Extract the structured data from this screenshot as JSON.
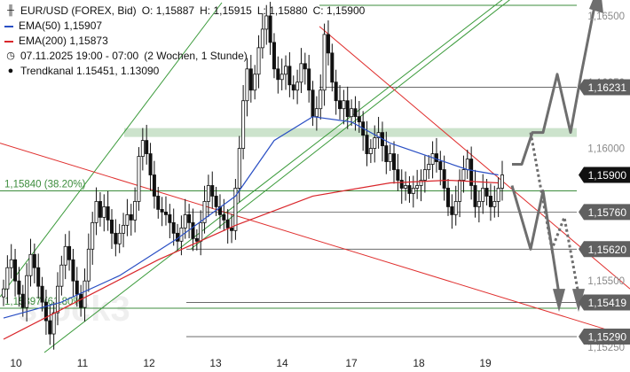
{
  "legend": {
    "symbol": "EUR/USD (FOREX, Bid)",
    "open_label": "O:",
    "open": "1,15887",
    "high_label": "H:",
    "high": "1,15915",
    "low_label": "L:",
    "low": "1,15880",
    "close_label": "C:",
    "close": "1,15900",
    "ema50_label": "EMA(50)",
    "ema50_value": "1,15907",
    "ema200_label": "EMA(200)",
    "ema200_value": "1,15873",
    "range": "07.11.2025 19:00 - 07:00",
    "range_note": "(2 Wochen, 1 Stunde)",
    "channel_label": "Trendkanal",
    "channel_values": "1.15451, 1.13090"
  },
  "watermark": "stock3",
  "colors": {
    "ema50": "#2a4fc4",
    "ema200": "#d9262b",
    "fib": "#3c8c3c",
    "channel": "#3a9a3a",
    "resistance_line": "#e0302f",
    "support_box": "#bfdcbf",
    "badge": "#606060",
    "badge_current": "#111111",
    "projection": "#6e6e6e",
    "candles": "#111111"
  },
  "chart_data": {
    "type": "candlestick",
    "title": "EUR/USD (FOREX, Bid)",
    "timeframe": "1 Stunde",
    "x_ticks": [
      "10",
      "11",
      "12",
      "13",
      "14",
      "17",
      "18",
      "19"
    ],
    "ylim": [
      1.1523,
      1.1656
    ],
    "y_ticks": [
      1.1525,
      1.155,
      1.1575,
      1.16,
      1.1625,
      1.165
    ],
    "y_tick_labels": [
      "1,15250",
      "1,15500",
      "1,15750",
      "1,16000",
      "1,16250",
      "1,16500"
    ],
    "current_price": 1.159,
    "current_price_label": "1,15900",
    "price_levels": [
      {
        "value": 1.16231,
        "label": "1,16231"
      },
      {
        "value": 1.1576,
        "label": "1,15760"
      },
      {
        "value": 1.1562,
        "label": "1,15620"
      },
      {
        "value": 1.15419,
        "label": "1,15419"
      },
      {
        "value": 1.1529,
        "label": "1,15290"
      }
    ],
    "fib_levels": [
      {
        "value": 1.1584,
        "label": "1,15840 (38.20%)"
      },
      {
        "value": 1.15397,
        "label": "1,15397 (61.80%)"
      }
    ],
    "support_zone": [
      1.1605,
      1.1607
    ],
    "top_line": 1.1654,
    "close_path": [
      1.1547,
      1.1555,
      1.1558,
      1.155,
      1.1545,
      1.154,
      1.1552,
      1.156,
      1.1555,
      1.1548,
      1.1542,
      1.1535,
      1.153,
      1.1538,
      1.1548,
      1.1556,
      1.1563,
      1.1558,
      1.155,
      1.1545,
      1.154,
      1.155,
      1.1562,
      1.1572,
      1.158,
      1.1574,
      1.1578,
      1.1573,
      1.1568,
      1.1564,
      1.1568,
      1.1571,
      1.1575,
      1.1573,
      1.158,
      1.1597,
      1.1603,
      1.1598,
      1.159,
      1.1582,
      1.1577,
      1.1576,
      1.1575,
      1.1572,
      1.1568,
      1.1565,
      1.157,
      1.1575,
      1.1572,
      1.1566,
      1.1565,
      1.1572,
      1.158,
      1.1586,
      1.1582,
      1.1578,
      1.1575,
      1.1573,
      1.157,
      1.1569,
      1.1585,
      1.16,
      1.1618,
      1.163,
      1.1622,
      1.1628,
      1.1638,
      1.1645,
      1.165,
      1.164,
      1.163,
      1.1626,
      1.1628,
      1.1631,
      1.1624,
      1.1622,
      1.1625,
      1.1632,
      1.163,
      1.1622,
      1.1612,
      1.1615,
      1.1622,
      1.1643,
      1.1636,
      1.1625,
      1.1618,
      1.1615,
      1.1618,
      1.1612,
      1.1615,
      1.1612,
      1.161,
      1.1605,
      1.1598,
      1.16,
      1.1604,
      1.1606,
      1.1601,
      1.1595,
      1.1598,
      1.1592,
      1.1588,
      1.1585,
      1.1586,
      1.1583,
      1.1585,
      1.1586,
      1.1588,
      1.1592,
      1.1594,
      1.1598,
      1.1595,
      1.1592,
      1.1585,
      1.1578,
      1.1575,
      1.158,
      1.1588,
      1.1592,
      1.1596,
      1.1586,
      1.1578,
      1.158,
      1.1585,
      1.1582,
      1.1578,
      1.158,
      1.1585,
      1.159
    ],
    "ema50": [
      {
        "x": 0,
        "y": 1.1536
      },
      {
        "x": 15,
        "y": 1.1542
      },
      {
        "x": 30,
        "y": 1.1552
      },
      {
        "x": 45,
        "y": 1.1566
      },
      {
        "x": 60,
        "y": 1.1582
      },
      {
        "x": 70,
        "y": 1.1603
      },
      {
        "x": 80,
        "y": 1.1612
      },
      {
        "x": 90,
        "y": 1.161
      },
      {
        "x": 100,
        "y": 1.1602
      },
      {
        "x": 110,
        "y": 1.1597
      },
      {
        "x": 120,
        "y": 1.1592
      },
      {
        "x": 128,
        "y": 1.159
      }
    ],
    "ema200": [
      {
        "x": 0,
        "y": 1.1528
      },
      {
        "x": 20,
        "y": 1.1543
      },
      {
        "x": 40,
        "y": 1.1558
      },
      {
        "x": 60,
        "y": 1.1571
      },
      {
        "x": 80,
        "y": 1.1582
      },
      {
        "x": 100,
        "y": 1.1587
      },
      {
        "x": 115,
        "y": 1.1588
      },
      {
        "x": 128,
        "y": 1.1587
      }
    ]
  }
}
